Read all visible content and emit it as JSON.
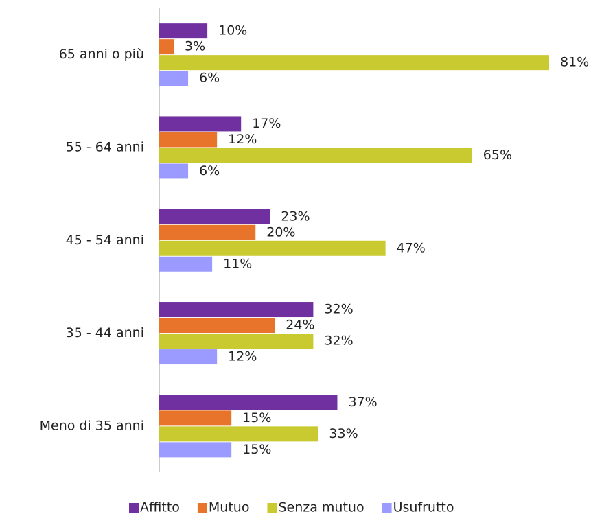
{
  "chart_data": {
    "type": "bar",
    "orientation": "horizontal",
    "categories": [
      "65 anni o più",
      "55 - 64 anni",
      "45 - 54 anni",
      "35 - 44 anni",
      "Meno di 35 anni"
    ],
    "series": [
      {
        "name": "Affitto",
        "color": "#7030a0",
        "values": [
          10,
          17,
          23,
          32,
          37
        ],
        "value_labels": [
          "10%",
          "17%",
          "23%",
          "32%",
          "37%"
        ]
      },
      {
        "name": "Mutuo",
        "color": "#e8732a",
        "values": [
          3,
          12,
          20,
          24,
          15
        ],
        "value_labels": [
          "3%",
          "12%",
          "20%",
          "24%",
          "15%"
        ]
      },
      {
        "name": "Senza mutuo",
        "color": "#c9c930",
        "values": [
          81,
          65,
          47,
          32,
          33
        ],
        "value_labels": [
          "81%",
          "65%",
          "47%",
          "32%",
          "33%"
        ]
      },
      {
        "name": "Usufrutto",
        "color": "#9b9bff",
        "values": [
          6,
          6,
          11,
          12,
          15
        ],
        "value_labels": [
          "6%",
          "6%",
          "11%",
          "12%",
          "15%"
        ]
      }
    ],
    "legend": "bottom"
  }
}
